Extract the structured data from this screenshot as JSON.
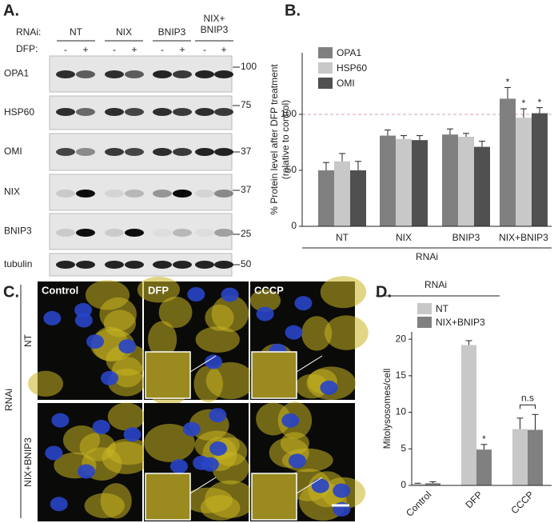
{
  "panels": [
    "A.",
    "B.",
    "C.",
    "D."
  ],
  "blot": {
    "rnai_label": "RNAi:",
    "dfp_label": "DFP:",
    "groups": [
      [
        "NT"
      ],
      [
        "NIX"
      ],
      [
        "BNIP3"
      ],
      [
        "NIX+",
        "BNIP3"
      ]
    ],
    "dfp": [
      "-",
      "+",
      "-",
      "+",
      "-",
      "+",
      "-",
      "+"
    ],
    "proteins": [
      "OPA1",
      "HSP60",
      "OMI",
      "NIX",
      "BNIP3",
      "tubulin"
    ],
    "markers": [
      100,
      75,
      37,
      37,
      25,
      50
    ]
  },
  "microscopy": {
    "columns": [
      "Control",
      "DFP",
      "CCCP"
    ],
    "rows": [
      "NT",
      "NIX+BNIP3"
    ],
    "side_label": "RNAi"
  },
  "chart_data": [
    {
      "type": "bar",
      "ylabel": [
        "% Protein level after DFP treatment",
        "(relative to control)"
      ],
      "xlabel": "RNAi",
      "categories": [
        "NT",
        "NIX",
        "BNIP3",
        "NIX+BNIP3"
      ],
      "series": [
        {
          "name": "OPA1",
          "color": "#808080",
          "values": [
            50,
            81,
            82,
            114
          ],
          "errors": [
            7,
            5,
            5,
            10
          ]
        },
        {
          "name": "HSP60",
          "color": "#c8c8c8",
          "values": [
            58,
            78,
            80,
            97
          ],
          "errors": [
            7,
            3,
            3,
            8
          ]
        },
        {
          "name": "OMI",
          "color": "#505050",
          "values": [
            50,
            77,
            71,
            101
          ],
          "errors": [
            8,
            4,
            5,
            5
          ]
        }
      ],
      "ylim": [
        0,
        155
      ],
      "yticks": [
        0,
        50,
        100
      ],
      "reference_line": 100,
      "legend": "upper left",
      "annotations": [
        "*",
        "*",
        "*"
      ]
    },
    {
      "type": "bar",
      "ylabel": "Mitolysosomes/cell",
      "legend_title": "RNAi",
      "categories": [
        "Control",
        "DFP",
        "CCCP"
      ],
      "series": [
        {
          "name": "NT",
          "color": "#c8c8c8",
          "values": [
            0.2,
            19.2,
            7.7
          ],
          "errors": [
            0.1,
            0.6,
            1.5
          ]
        },
        {
          "name": "NIX+BNIP3",
          "color": "#808080",
          "values": [
            0.3,
            4.9,
            7.6
          ],
          "errors": [
            0.2,
            0.7,
            2.1
          ]
        }
      ],
      "ylim": [
        0,
        21
      ],
      "yticks": [
        0,
        5,
        10,
        15,
        20
      ],
      "legend": "top",
      "annotations": [
        "*",
        "n.s"
      ]
    }
  ]
}
